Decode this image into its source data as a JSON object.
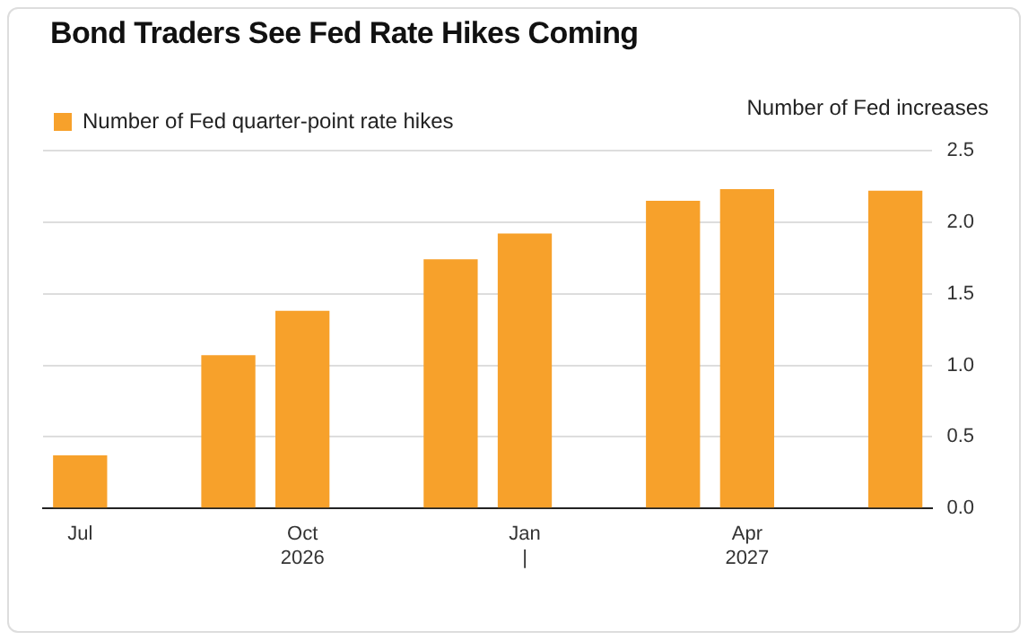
{
  "chart_data": {
    "type": "bar",
    "title": "Bond Traders See Fed Rate Hikes Coming",
    "ylabel": "Number of Fed increases",
    "categories": [
      "Jul",
      null,
      null,
      "Oct\n2026",
      null,
      null,
      "Jan\n|",
      null,
      null,
      "Apr\n2027",
      null,
      null
    ],
    "series": [
      {
        "name": "Number of Fed quarter-point rate hikes",
        "color": "#f7a12b",
        "values": [
          0.37,
          null,
          1.07,
          1.38,
          null,
          1.74,
          1.92,
          null,
          2.15,
          2.23,
          null,
          2.22
        ]
      }
    ],
    "ylim": [
      0,
      2.5
    ],
    "yticks": [
      {
        "value": 0,
        "label": "0.0"
      },
      {
        "value": 0.5,
        "label": "0.5"
      },
      {
        "value": 1,
        "label": "1.0"
      },
      {
        "value": 1.5,
        "label": "1.5"
      },
      {
        "value": 2,
        "label": "2.0"
      },
      {
        "value": 2.5,
        "label": "2.5"
      }
    ],
    "grid": "y",
    "legend": "top left"
  }
}
